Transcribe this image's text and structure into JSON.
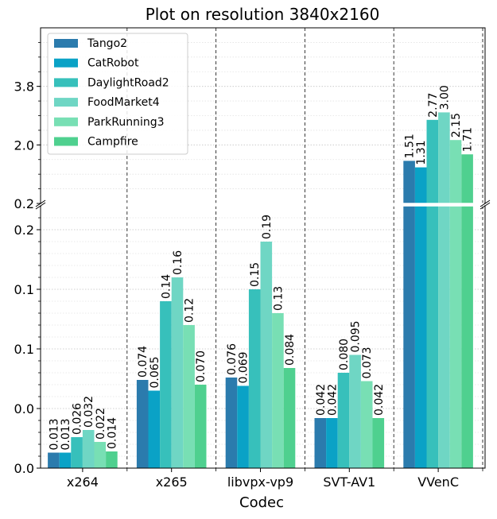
{
  "chart_data": {
    "type": "bar",
    "title": "Plot on resolution 3840x2160",
    "xlabel": "Codec",
    "ylabel": "",
    "categories": [
      "x264",
      "x265",
      "libvpx-vp9",
      "SVT-AV1",
      "VVenC"
    ],
    "broken_axis": true,
    "upper_range": [
      0.2,
      5.6
    ],
    "upper_ticks": [
      "0.2",
      "2.0",
      "3.8"
    ],
    "lower_range": [
      0,
      0.22
    ],
    "lower_ticks": [
      "0.0",
      "0.0",
      "0.1",
      "0.1",
      "0.2"
    ],
    "grid": true,
    "legend_position": "top-left",
    "colors": [
      "#2b7bad",
      "#0aa2c6",
      "#37c0bb",
      "#6fd6c4",
      "#78dfb4",
      "#4fd08f"
    ],
    "series": [
      {
        "name": "Tango2",
        "values": [
          0.013,
          0.074,
          0.076,
          0.042,
          1.51
        ],
        "labels": [
          "0.013",
          "0.074",
          "0.076",
          "0.042",
          "1.51"
        ]
      },
      {
        "name": "CatRobot",
        "values": [
          0.013,
          0.065,
          0.069,
          0.042,
          1.31
        ],
        "labels": [
          "0.013",
          "0.065",
          "0.069",
          "0.042",
          "1.31"
        ]
      },
      {
        "name": "DaylightRoad2",
        "values": [
          0.026,
          0.14,
          0.15,
          0.08,
          2.77
        ],
        "labels": [
          "0.026",
          "0.14",
          "0.15",
          "0.080",
          "2.77"
        ]
      },
      {
        "name": "FoodMarket4",
        "values": [
          0.032,
          0.16,
          0.19,
          0.095,
          3.0
        ],
        "labels": [
          "0.032",
          "0.16",
          "0.19",
          "0.095",
          "3.00"
        ]
      },
      {
        "name": "ParkRunning3",
        "values": [
          0.022,
          0.12,
          0.13,
          0.073,
          2.15
        ],
        "labels": [
          "0.022",
          "0.12",
          "0.13",
          "0.073",
          "2.15"
        ]
      },
      {
        "name": "Campfire",
        "values": [
          0.014,
          0.07,
          0.084,
          0.042,
          1.71
        ],
        "labels": [
          "0.014",
          "0.070",
          "0.084",
          "0.042",
          "1.71"
        ]
      }
    ]
  }
}
